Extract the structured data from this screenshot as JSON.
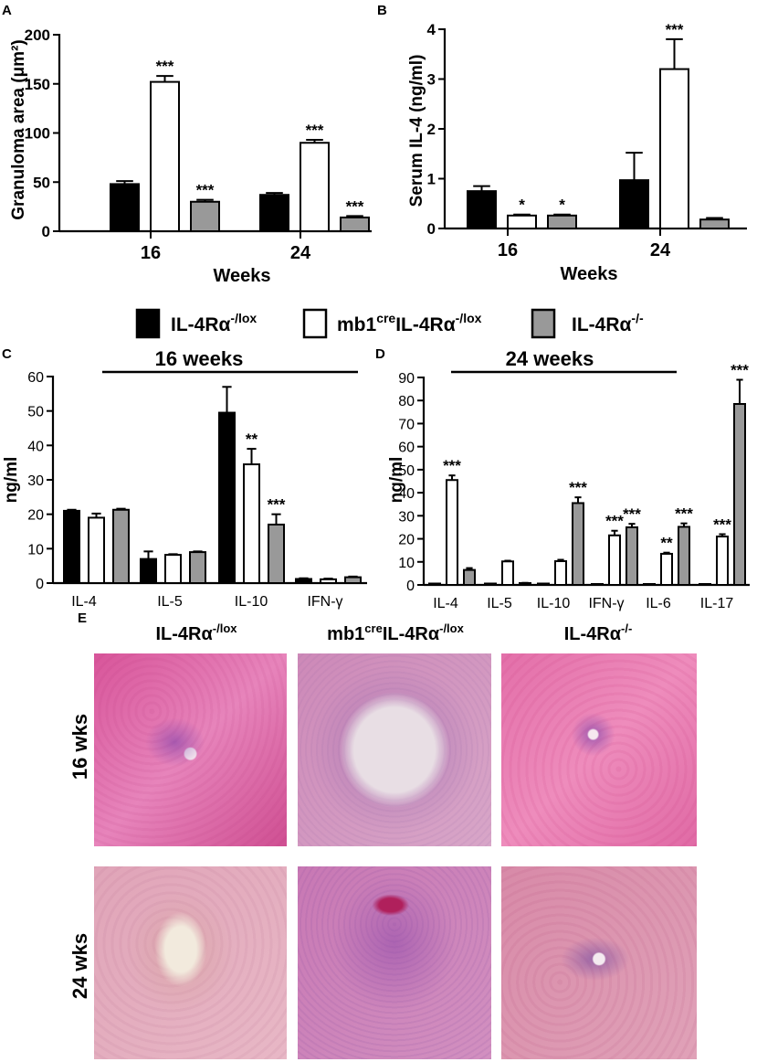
{
  "chart_data": [
    {
      "panel": "A",
      "type": "bar",
      "title": "",
      "xlabel": "Weeks",
      "ylabel": "Granuloma area (μm²)",
      "ylim": [
        0,
        200
      ],
      "yticks": [
        "0",
        "50",
        "100",
        "150",
        "200"
      ],
      "categories": [
        "16",
        "24"
      ],
      "series": [
        {
          "name": "IL-4Rα-/lox",
          "values": [
            48,
            37
          ],
          "errors": [
            3,
            2
          ],
          "sig": [
            "",
            ""
          ]
        },
        {
          "name": "mb1creIL-4Rα-/lox",
          "values": [
            152,
            90
          ],
          "errors": [
            6,
            3
          ],
          "sig": [
            "***",
            "***"
          ]
        },
        {
          "name": "IL-4Rα-/-",
          "values": [
            30,
            14
          ],
          "errors": [
            2,
            1.5
          ],
          "sig": [
            "***",
            "***"
          ]
        }
      ]
    },
    {
      "panel": "B",
      "type": "bar",
      "title": "",
      "xlabel": "Weeks",
      "ylabel": "Serum IL-4 (ng/ml)",
      "ylim": [
        0,
        4
      ],
      "yticks": [
        "0",
        "1",
        "2",
        "3",
        "4"
      ],
      "categories": [
        "16",
        "24"
      ],
      "series": [
        {
          "name": "IL-4Rα-/lox",
          "values": [
            0.75,
            0.97
          ],
          "errors": [
            0.1,
            0.55
          ],
          "sig": [
            "",
            ""
          ]
        },
        {
          "name": "mb1creIL-4Rα-/lox",
          "values": [
            0.26,
            3.2
          ],
          "errors": [
            0.02,
            0.6
          ],
          "sig": [
            "*",
            "***"
          ]
        },
        {
          "name": "IL-4Rα-/-",
          "values": [
            0.26,
            0.18
          ],
          "errors": [
            0.02,
            0.03
          ],
          "sig": [
            "*",
            ""
          ]
        }
      ]
    },
    {
      "panel": "C",
      "type": "bar",
      "title": "16 weeks",
      "xlabel": "",
      "ylabel": "ng/ml",
      "ylim": [
        0,
        60
      ],
      "yticks": [
        "0",
        "10",
        "20",
        "30",
        "40",
        "50",
        "60"
      ],
      "categories": [
        "IL-4",
        "IL-5",
        "IL-10",
        "IFN-γ"
      ],
      "series": [
        {
          "name": "IL-4Rα-/lox",
          "values": [
            21,
            7,
            49.5,
            1.2
          ],
          "errors": [
            0.3,
            2.2,
            7.5,
            0.2
          ],
          "sig": [
            "",
            "",
            "",
            ""
          ]
        },
        {
          "name": "mb1creIL-4Rα-/lox",
          "values": [
            19,
            8.2,
            34.5,
            1.1
          ],
          "errors": [
            1.2,
            0.2,
            4.5,
            0.2
          ],
          "sig": [
            "",
            "",
            "**",
            ""
          ]
        },
        {
          "name": "IL-4Rα-/-",
          "values": [
            21.3,
            9,
            17,
            1.7
          ],
          "errors": [
            0.3,
            0.2,
            3,
            0.2
          ],
          "sig": [
            "",
            "",
            "***",
            ""
          ]
        }
      ]
    },
    {
      "panel": "D",
      "type": "bar",
      "title": "24 weeks",
      "xlabel": "",
      "ylabel": "ng/ml",
      "ylim": [
        0,
        90
      ],
      "yticks": [
        "0",
        "10",
        "20",
        "30",
        "40",
        "50",
        "60",
        "70",
        "80",
        "90"
      ],
      "categories": [
        "IL-4",
        "IL-5",
        "IL-10",
        "IFN-γ",
        "IL-6",
        "IL-17"
      ],
      "series": [
        {
          "name": "IL-4Rα-/lox",
          "values": [
            0.6,
            0.6,
            0.6,
            0.4,
            0.4,
            0.4
          ],
          "errors": [
            0,
            0,
            0,
            0,
            0,
            0
          ],
          "sig": [
            "",
            "",
            "",
            "",
            "",
            ""
          ]
        },
        {
          "name": "mb1creIL-4Rα-/lox",
          "values": [
            45.5,
            10.2,
            10.3,
            21.5,
            13.5,
            21
          ],
          "errors": [
            2,
            0.3,
            0.6,
            2,
            0.5,
            1
          ],
          "sig": [
            "***",
            "",
            "",
            "***",
            "**",
            "***"
          ]
        },
        {
          "name": "IL-4Rα-/-",
          "values": [
            6.5,
            0.8,
            35.5,
            25,
            25.2,
            78.5
          ],
          "errors": [
            0.8,
            0.1,
            2.5,
            1.5,
            1.5,
            10.5
          ],
          "sig": [
            "",
            "",
            "***",
            "***",
            "***",
            "***"
          ]
        }
      ]
    }
  ],
  "panel_letters": {
    "a": "A",
    "b": "B",
    "c": "C",
    "d": "D",
    "e": "E"
  },
  "legend": {
    "items": [
      {
        "base": "IL-4Rα",
        "sup": "-/lox",
        "pre": "",
        "pre_sup": "",
        "color": "#000000"
      },
      {
        "base": "IL-4Rα",
        "sup": "-/lox",
        "pre": "mb1",
        "pre_sup": "cre",
        "color": "#ffffff"
      },
      {
        "base": "IL-4Rα",
        "sup": "-/-",
        "pre": "",
        "pre_sup": "",
        "color": "#999999"
      }
    ]
  },
  "histology": {
    "columns": [
      {
        "pre": "",
        "pre_sup": "",
        "base": "IL-4Rα",
        "sup": "-/lox"
      },
      {
        "pre": "mb1",
        "pre_sup": "cre",
        "base": "IL-4Rα",
        "sup": "-/lox"
      },
      {
        "pre": "",
        "pre_sup": "",
        "base": "IL-4Rα",
        "sup": "-/-"
      }
    ],
    "rows": [
      "16 wks",
      "24 wks"
    ]
  },
  "colors": {
    "black_bar": "#000000",
    "white_bar": "#ffffff",
    "gray_bar": "#999999"
  }
}
